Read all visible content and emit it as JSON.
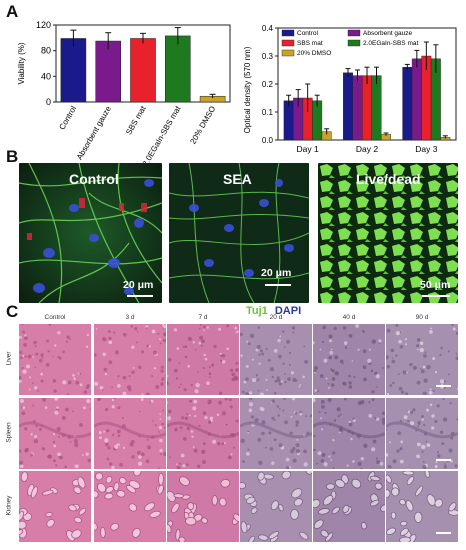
{
  "panels": {
    "a": "A",
    "b": "B",
    "c": "C"
  },
  "chart_data": [
    {
      "type": "bar",
      "ylabel": "Viability (%)",
      "ylim": [
        0,
        120
      ],
      "yticks": [
        "0",
        "40",
        "80",
        "120"
      ],
      "categories": [
        "Control",
        "Absorbent gauze",
        "SBS mat",
        "2.0EGaIn-SBS mat",
        "20% DMSO"
      ],
      "values": [
        99,
        95,
        99,
        103,
        9
      ],
      "errors": [
        13,
        13,
        8,
        13,
        3
      ],
      "colors": [
        "#1a1a8c",
        "#7b1a8c",
        "#e8212b",
        "#1f7a1f",
        "#c9a227"
      ]
    },
    {
      "type": "bar",
      "ylabel": "Optical density (570 nm)",
      "ylim": [
        0,
        0.4
      ],
      "yticks": [
        "0.0",
        "0.1",
        "0.2",
        "0.3",
        "0.4"
      ],
      "categories": [
        "Day 1",
        "Day 2",
        "Day 3"
      ],
      "legend": {
        "placement": "top",
        "entries": [
          "Control",
          "Absorbent gauze",
          "SBS mat",
          "2.0EGaIn-SBS mat",
          "20% DMSO"
        ]
      },
      "series": [
        {
          "name": "Control",
          "color": "#1a1a8c",
          "values": [
            0.14,
            0.24,
            0.26
          ],
          "errors": [
            0.02,
            0.015,
            0.01
          ]
        },
        {
          "name": "Absorbent gauze",
          "color": "#7b1a8c",
          "values": [
            0.15,
            0.23,
            0.29
          ],
          "errors": [
            0.03,
            0.02,
            0.03
          ]
        },
        {
          "name": "SBS mat",
          "color": "#e8212b",
          "values": [
            0.15,
            0.23,
            0.3
          ],
          "errors": [
            0.05,
            0.03,
            0.05
          ]
        },
        {
          "name": "2.0EGaIn-SBS mat",
          "color": "#1f7a1f",
          "values": [
            0.14,
            0.23,
            0.29
          ],
          "errors": [
            0.02,
            0.03,
            0.05
          ]
        },
        {
          "name": "20% DMSO",
          "color": "#c9a227",
          "values": [
            0.03,
            0.02,
            0.01
          ],
          "errors": [
            0.01,
            0.005,
            0.005
          ]
        }
      ]
    }
  ],
  "micrographs": [
    {
      "label": "Control",
      "scale": "20 μm"
    },
    {
      "label": "SEA",
      "scale": "20 μm"
    },
    {
      "label": "Live/dead",
      "scale": "50 μm"
    }
  ],
  "stain_legend": {
    "tuj": "Tuj1",
    "dapi": "DAPI",
    "tuj_color": "#6cc43a",
    "dapi_color": "#2a3a9a"
  },
  "histology": {
    "columns": [
      "Control",
      "3 d",
      "7 d",
      "20 d",
      "40 d",
      "90 d"
    ],
    "rows": [
      "Liver",
      "Spleen",
      "Kidney"
    ]
  }
}
